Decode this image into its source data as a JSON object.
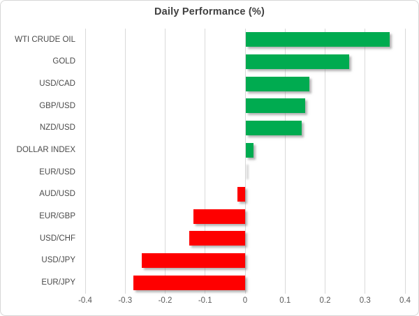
{
  "chart_data": {
    "type": "bar",
    "orientation": "horizontal",
    "title": "Daily Performance (%)",
    "categories": [
      "WTI CRUDE OIL",
      "GOLD",
      "USD/CAD",
      "GBP/USD",
      "NZD/USD",
      "DOLLAR INDEX",
      "EUR/USD",
      "AUD/USD",
      "EUR/GBP",
      "USD/CHF",
      "USD/JPY",
      "EUR/JPY"
    ],
    "values": [
      0.36,
      0.26,
      0.16,
      0.15,
      0.14,
      0.02,
      0.0,
      -0.02,
      -0.13,
      -0.14,
      -0.26,
      -0.28
    ],
    "xlabel": "",
    "ylabel": "",
    "xlim": [
      -0.4,
      0.4
    ],
    "xticks": [
      -0.4,
      -0.3,
      -0.2,
      -0.1,
      0,
      0.1,
      0.2,
      0.3,
      0.4
    ],
    "xtick_labels": [
      "-0.4",
      "-0.3",
      "-0.2",
      "-0.1",
      "0",
      "0.1",
      "0.2",
      "0.3",
      "0.4"
    ],
    "grid": true,
    "legend": false,
    "colors": {
      "positive_bar": "#00ab50",
      "negative_bar": "#fe0000",
      "gridline": "#d9d9d9",
      "title_text": "#404040",
      "category_text": "#4a4a4a",
      "tick_text": "#595959",
      "frame_border": "#d7d7d7",
      "background": "#ffffff"
    }
  }
}
